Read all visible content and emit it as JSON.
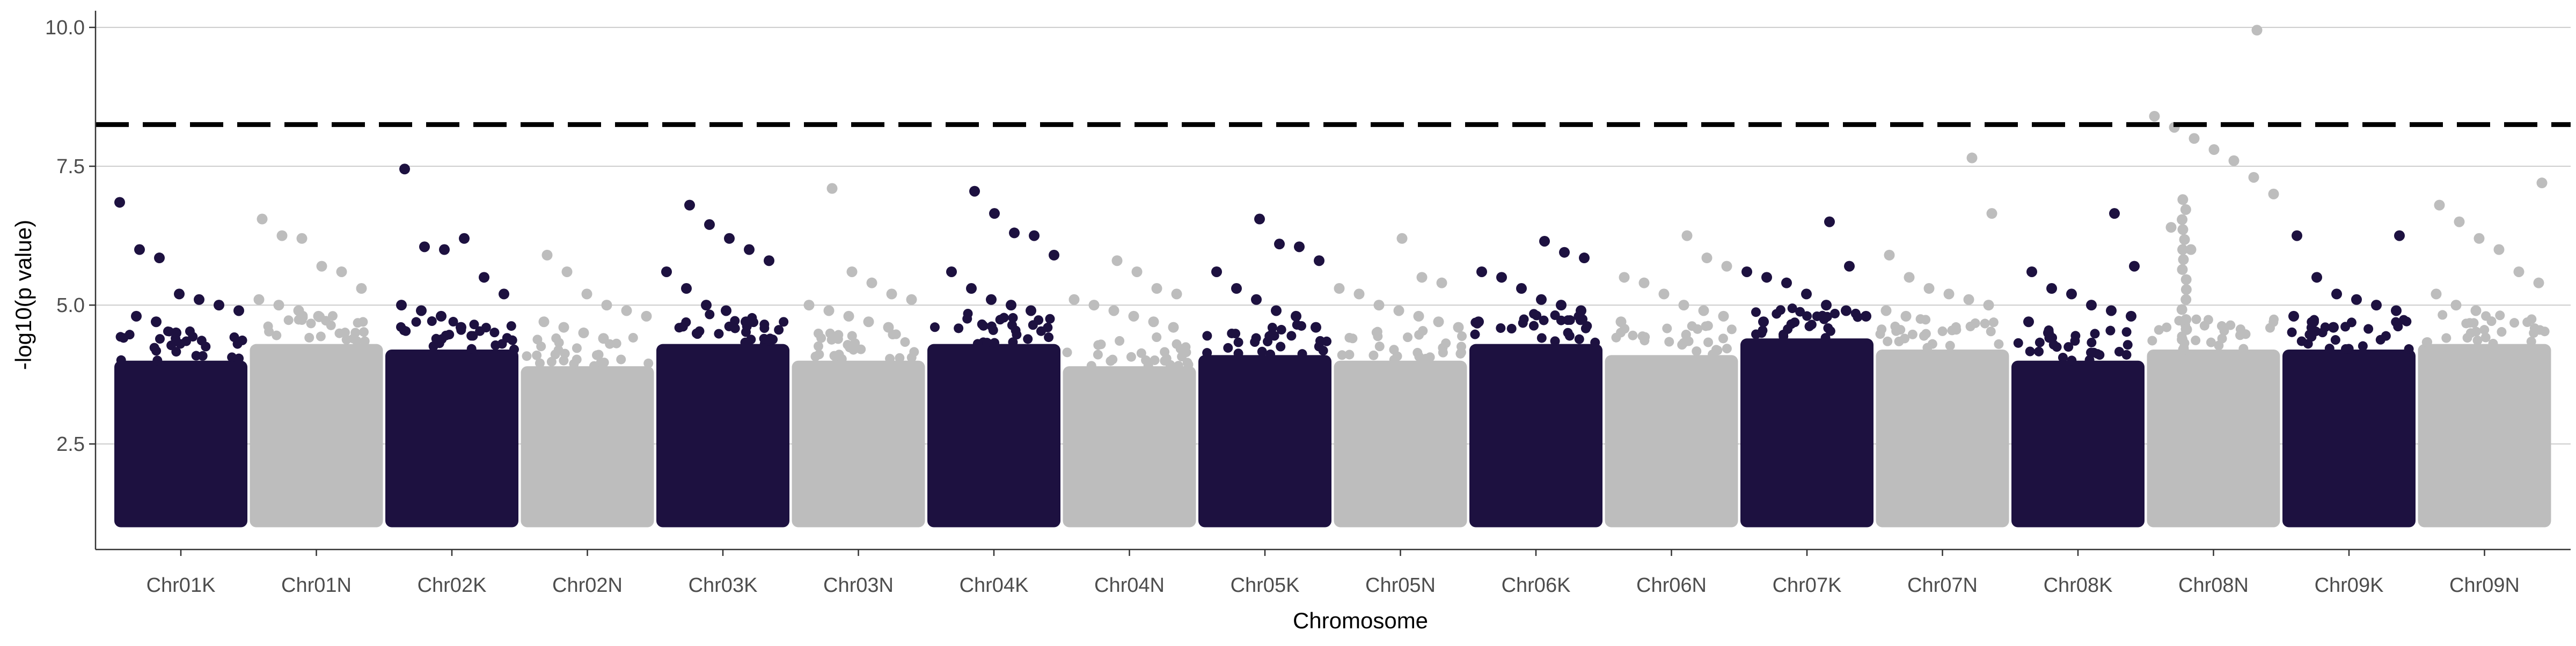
{
  "chart_data": {
    "type": "scatter",
    "title": "",
    "xlabel": "Chromosome",
    "ylabel": "-log10(p value)",
    "ylim": [
      0.6,
      10.3
    ],
    "yticks": [
      2.5,
      5.0,
      7.5,
      10.0
    ],
    "ytick_labels": [
      "2.5",
      "5.0",
      "7.5",
      "10.0"
    ],
    "grid": "horizontal major lines only",
    "legend": "none",
    "threshold": 8.25,
    "colors": {
      "dark": "#1d1140",
      "light": "#bdbdbd",
      "threshold": "#000000",
      "grid": "#cccccc"
    },
    "categories": [
      "Chr01K",
      "Chr01N",
      "Chr02K",
      "Chr02N",
      "Chr03K",
      "Chr03N",
      "Chr04K",
      "Chr04N",
      "Chr05K",
      "Chr05N",
      "Chr06K",
      "Chr06N",
      "Chr07K",
      "Chr07N",
      "Chr08K",
      "Chr08N",
      "Chr09K",
      "Chr09N"
    ],
    "series": [
      {
        "values": [
          {
            "chr": "Chr01K",
            "min": 1.0,
            "dense_max": 4.0,
            "top": [
              6.85,
              6.0,
              5.85,
              5.2,
              5.1,
              5.0,
              4.9,
              4.8,
              4.7,
              4.5
            ]
          },
          {
            "chr": "Chr02K",
            "min": 1.0,
            "dense_max": 4.2,
            "top": [
              7.45,
              6.05,
              6.0,
              6.2,
              5.5,
              5.2,
              5.0,
              4.9,
              4.8,
              4.6
            ]
          },
          {
            "chr": "Chr03K",
            "min": 1.0,
            "dense_max": 4.3,
            "top": [
              6.8,
              6.45,
              6.2,
              6.0,
              5.8,
              5.6,
              5.3,
              5.0,
              4.9,
              4.7
            ]
          },
          {
            "chr": "Chr04K",
            "min": 1.0,
            "dense_max": 4.3,
            "top": [
              7.05,
              6.65,
              6.3,
              6.25,
              5.9,
              5.6,
              5.3,
              5.1,
              5.0,
              4.9
            ]
          },
          {
            "chr": "Chr05K",
            "min": 1.0,
            "dense_max": 4.1,
            "top": [
              6.55,
              6.1,
              6.05,
              5.8,
              5.6,
              5.3,
              5.1,
              4.9,
              4.8,
              4.6
            ]
          },
          {
            "chr": "Chr06K",
            "min": 1.0,
            "dense_max": 4.3,
            "top": [
              6.15,
              5.95,
              5.85,
              5.6,
              5.5,
              5.3,
              5.1,
              5.0,
              4.9,
              4.7
            ]
          },
          {
            "chr": "Chr07K",
            "min": 1.0,
            "dense_max": 4.4,
            "top": [
              6.5,
              5.7,
              5.6,
              5.5,
              5.4,
              5.2,
              5.0,
              4.9,
              4.8,
              4.7
            ]
          },
          {
            "chr": "Chr08K",
            "min": 1.0,
            "dense_max": 4.0,
            "top": [
              6.65,
              5.7,
              5.6,
              5.3,
              5.2,
              5.0,
              4.9,
              4.8,
              4.7,
              4.5
            ]
          },
          {
            "chr": "Chr09K",
            "min": 1.0,
            "dense_max": 4.2,
            "top": [
              6.25,
              6.25,
              5.5,
              5.2,
              5.1,
              5.0,
              4.9,
              4.8,
              4.7,
              4.6
            ]
          }
        ]
      },
      {
        "values": [
          {
            "chr": "Chr01N",
            "min": 1.0,
            "dense_max": 4.3,
            "top": [
              6.55,
              6.25,
              6.2,
              5.7,
              5.6,
              5.3,
              5.1,
              5.0,
              4.9,
              4.8
            ]
          },
          {
            "chr": "Chr02N",
            "min": 1.0,
            "dense_max": 3.9,
            "top": [
              5.9,
              5.6,
              5.2,
              5.0,
              4.9,
              4.8,
              4.7,
              4.6,
              4.5,
              4.4
            ]
          },
          {
            "chr": "Chr03N",
            "min": 1.0,
            "dense_max": 4.0,
            "top": [
              7.1,
              5.6,
              5.4,
              5.2,
              5.1,
              5.0,
              4.9,
              4.8,
              4.7,
              4.6
            ]
          },
          {
            "chr": "Chr04N",
            "min": 1.0,
            "dense_max": 3.9,
            "top": [
              5.8,
              5.6,
              5.3,
              5.2,
              5.1,
              5.0,
              4.9,
              4.8,
              4.7,
              4.6
            ]
          },
          {
            "chr": "Chr05N",
            "min": 1.0,
            "dense_max": 4.0,
            "top": [
              6.2,
              5.5,
              5.4,
              5.3,
              5.2,
              5.0,
              4.9,
              4.8,
              4.7,
              4.6
            ]
          },
          {
            "chr": "Chr06N",
            "min": 1.0,
            "dense_max": 4.1,
            "top": [
              6.25,
              5.85,
              5.7,
              5.5,
              5.4,
              5.2,
              5.0,
              4.9,
              4.8,
              4.7
            ]
          },
          {
            "chr": "Chr07N",
            "min": 1.0,
            "dense_max": 4.2,
            "top": [
              7.65,
              6.65,
              5.9,
              5.5,
              5.3,
              5.2,
              5.1,
              5.0,
              4.9,
              4.8
            ]
          },
          {
            "chr": "Chr08N",
            "min": 1.0,
            "dense_max": 4.2,
            "top": [
              9.95,
              8.4,
              8.2,
              8.0,
              7.8,
              7.6,
              7.3,
              7.0,
              6.4,
              6.0
            ]
          },
          {
            "chr": "Chr09N",
            "min": 1.0,
            "dense_max": 4.3,
            "top": [
              7.2,
              6.8,
              6.5,
              6.2,
              6.0,
              5.6,
              5.4,
              5.2,
              5.0,
              4.9
            ]
          }
        ]
      }
    ]
  }
}
